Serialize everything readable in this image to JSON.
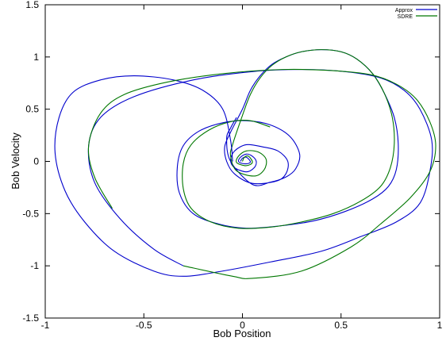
{
  "chart_data": {
    "type": "line",
    "title": "",
    "xlabel": "Bob Position",
    "ylabel": "Bob Velocity",
    "xlim": [
      -1,
      1
    ],
    "ylim": [
      -1.5,
      1.5
    ],
    "xticks": [
      -1,
      -0.5,
      0,
      0.5,
      1
    ],
    "xtick_labels": [
      "-1",
      "-0.5",
      "0",
      "0.5",
      "1"
    ],
    "yticks": [
      -1.5,
      -1,
      -0.5,
      0,
      0.5,
      1,
      1.5
    ],
    "ytick_labels": [
      "-1.5",
      "-1",
      "-0.5",
      "0",
      "0.5",
      "1",
      "1.5"
    ],
    "grid": false,
    "legend_position": "top-right",
    "series": [
      {
        "name": "Approx",
        "color": "#0000cc",
        "points": [
          [
            -0.01,
            0.0
          ],
          [
            0.0,
            0.03
          ],
          [
            0.02,
            0.04
          ],
          [
            0.04,
            0.0
          ],
          [
            0.03,
            -0.02
          ],
          [
            0.0,
            -0.02
          ],
          [
            -0.02,
            0.0
          ],
          [
            -0.01,
            0.04
          ],
          [
            0.02,
            0.07
          ],
          [
            0.05,
            0.05
          ],
          [
            0.07,
            0.0
          ],
          [
            0.06,
            -0.06
          ],
          [
            0.02,
            -0.1
          ],
          [
            -0.04,
            -0.06
          ],
          [
            -0.06,
            0.01
          ],
          [
            -0.04,
            0.1
          ],
          [
            0.02,
            0.16
          ],
          [
            0.1,
            0.14
          ],
          [
            0.18,
            0.1
          ],
          [
            0.23,
            0.0
          ],
          [
            0.22,
            -0.12
          ],
          [
            0.17,
            -0.19
          ],
          [
            0.05,
            -0.21
          ],
          [
            -0.04,
            -0.12
          ],
          [
            -0.08,
            0.0
          ],
          [
            -0.09,
            0.14
          ],
          [
            -0.06,
            0.28
          ],
          [
            0.0,
            0.5
          ],
          [
            0.04,
            0.68
          ],
          [
            0.09,
            0.82
          ],
          [
            0.15,
            0.93
          ],
          [
            0.22,
            1.0
          ],
          [
            0.3,
            1.05
          ],
          [
            0.4,
            1.07
          ],
          [
            0.5,
            1.05
          ],
          [
            0.58,
            0.98
          ],
          [
            0.66,
            0.84
          ],
          [
            0.72,
            0.65
          ],
          [
            0.77,
            0.42
          ],
          [
            0.79,
            0.17
          ],
          [
            0.78,
            -0.08
          ],
          [
            0.74,
            -0.24
          ],
          [
            0.66,
            -0.36
          ],
          [
            0.52,
            -0.48
          ],
          [
            0.36,
            -0.57
          ],
          [
            0.18,
            -0.62
          ],
          [
            0.02,
            -0.64
          ],
          [
            -0.12,
            -0.6
          ],
          [
            -0.25,
            -0.5
          ],
          [
            -0.32,
            -0.3
          ],
          [
            -0.33,
            -0.05
          ],
          [
            -0.3,
            0.15
          ],
          [
            -0.22,
            0.29
          ],
          [
            -0.1,
            0.37
          ],
          [
            0.02,
            0.39
          ],
          [
            0.14,
            0.35
          ],
          [
            0.24,
            0.24
          ],
          [
            0.29,
            0.07
          ],
          [
            0.27,
            -0.07
          ],
          [
            0.22,
            -0.15
          ],
          [
            0.14,
            -0.2
          ],
          [
            0.05,
            -0.22
          ],
          [
            -0.06,
            0.0
          ],
          [
            -0.08,
            0.22
          ],
          [
            -0.06,
            0.32
          ],
          [
            -0.03,
            0.42
          ]
        ]
      },
      {
        "name": "SDRE",
        "color": "#007700",
        "points": [
          [
            0.0,
            0.0
          ],
          [
            0.01,
            0.04
          ],
          [
            0.03,
            0.05
          ],
          [
            0.05,
            0.0
          ],
          [
            0.04,
            -0.03
          ],
          [
            0.01,
            -0.04
          ],
          [
            -0.03,
            -0.01
          ],
          [
            -0.02,
            0.05
          ],
          [
            0.02,
            0.1
          ],
          [
            0.08,
            0.09
          ],
          [
            0.12,
            0.02
          ],
          [
            0.11,
            -0.08
          ],
          [
            0.06,
            -0.14
          ],
          [
            -0.03,
            -0.09
          ],
          [
            -0.06,
            0.05
          ],
          [
            -0.05,
            0.16
          ],
          [
            0.0,
            0.44
          ],
          [
            0.04,
            0.64
          ],
          [
            0.09,
            0.8
          ],
          [
            0.15,
            0.92
          ],
          [
            0.22,
            1.0
          ],
          [
            0.3,
            1.05
          ],
          [
            0.4,
            1.07
          ],
          [
            0.5,
            1.05
          ],
          [
            0.58,
            0.98
          ],
          [
            0.66,
            0.84
          ],
          [
            0.72,
            0.65
          ],
          [
            0.76,
            0.42
          ],
          [
            0.77,
            0.17
          ],
          [
            0.75,
            -0.06
          ],
          [
            0.7,
            -0.24
          ],
          [
            0.6,
            -0.38
          ],
          [
            0.46,
            -0.5
          ],
          [
            0.3,
            -0.58
          ],
          [
            0.14,
            -0.63
          ],
          [
            -0.02,
            -0.64
          ],
          [
            -0.16,
            -0.58
          ],
          [
            -0.26,
            -0.45
          ],
          [
            -0.3,
            -0.26
          ],
          [
            -0.3,
            -0.02
          ],
          [
            -0.26,
            0.16
          ],
          [
            -0.17,
            0.3
          ],
          [
            -0.06,
            0.38
          ],
          [
            0.04,
            0.39
          ],
          [
            0.14,
            0.33
          ]
        ]
      },
      {
        "name": "Approx",
        "color": "#0000cc",
        "points": [
          [
            -0.05,
            0.0
          ],
          [
            -0.06,
            0.2
          ],
          [
            -0.1,
            0.5
          ],
          [
            -0.2,
            0.68
          ],
          [
            -0.35,
            0.78
          ],
          [
            -0.55,
            0.82
          ],
          [
            -0.72,
            0.78
          ],
          [
            -0.86,
            0.66
          ],
          [
            -0.93,
            0.42
          ],
          [
            -0.95,
            0.08
          ],
          [
            -0.9,
            -0.28
          ],
          [
            -0.8,
            -0.58
          ],
          [
            -0.65,
            -0.86
          ],
          [
            -0.45,
            -1.05
          ],
          [
            -0.3,
            -1.1
          ],
          [
            -0.1,
            -1.05
          ],
          [
            0.15,
            -0.96
          ],
          [
            0.4,
            -0.86
          ],
          [
            0.6,
            -0.72
          ],
          [
            0.78,
            -0.58
          ],
          [
            0.9,
            -0.4
          ],
          [
            0.95,
            -0.1
          ],
          [
            0.96,
            0.2
          ],
          [
            0.9,
            0.5
          ],
          [
            0.82,
            0.68
          ],
          [
            0.7,
            0.8
          ],
          [
            0.52,
            0.86
          ],
          [
            0.3,
            0.88
          ],
          [
            0.05,
            0.86
          ],
          [
            -0.25,
            0.78
          ],
          [
            -0.55,
            0.62
          ],
          [
            -0.72,
            0.42
          ],
          [
            -0.78,
            0.15
          ],
          [
            -0.75,
            -0.2
          ],
          [
            -0.62,
            -0.55
          ],
          [
            -0.45,
            -0.84
          ],
          [
            -0.3,
            -1.0
          ]
        ]
      },
      {
        "name": "SDRE",
        "color": "#007700",
        "points": [
          [
            -0.3,
            -1.0
          ],
          [
            -0.05,
            -1.1
          ],
          [
            0.05,
            -1.12
          ],
          [
            0.3,
            -1.05
          ],
          [
            0.55,
            -0.82
          ],
          [
            0.7,
            -0.6
          ],
          [
            0.85,
            -0.35
          ],
          [
            0.95,
            -0.1
          ],
          [
            0.98,
            0.15
          ],
          [
            0.95,
            0.38
          ],
          [
            0.88,
            0.6
          ],
          [
            0.78,
            0.74
          ],
          [
            0.65,
            0.83
          ],
          [
            0.45,
            0.87
          ],
          [
            0.2,
            0.88
          ],
          [
            -0.1,
            0.84
          ],
          [
            -0.38,
            0.76
          ],
          [
            -0.6,
            0.64
          ],
          [
            -0.72,
            0.46
          ],
          [
            -0.78,
            0.15
          ],
          [
            -0.75,
            -0.15
          ],
          [
            -0.66,
            -0.45
          ]
        ]
      }
    ],
    "legend": [
      {
        "label": "Approx",
        "color": "#0000cc"
      },
      {
        "label": "SDRE",
        "color": "#007700"
      }
    ]
  }
}
